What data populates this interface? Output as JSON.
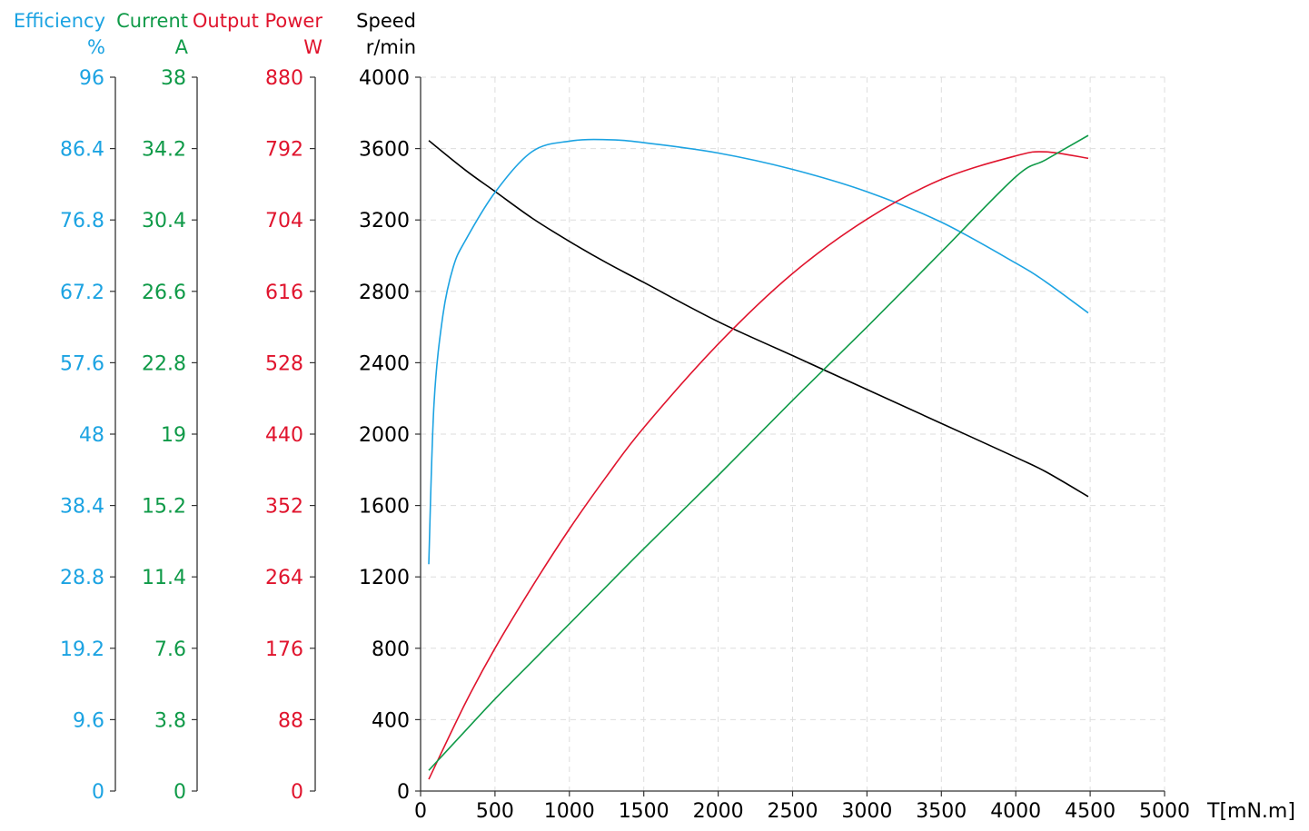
{
  "colors": {
    "efficiency": "#1ca3e2",
    "current": "#0f9a48",
    "output_power": "#e0142d",
    "speed": "#000000",
    "axis": "#333333",
    "grid": "#dddddd"
  },
  "axes": {
    "efficiency": {
      "title": "Efficiency",
      "unit": "%",
      "ticks": [
        "96",
        "86.4",
        "76.8",
        "67.2",
        "57.6",
        "48",
        "38.4",
        "28.8",
        "19.2",
        "9.6",
        "0"
      ]
    },
    "current": {
      "title": "Current",
      "unit": "A",
      "ticks": [
        "38",
        "34.2",
        "30.4",
        "26.6",
        "22.8",
        "19",
        "15.2",
        "11.4",
        "7.6",
        "3.8",
        "0"
      ]
    },
    "output_power": {
      "title": "Output Power",
      "unit": "W",
      "ticks": [
        "880",
        "792",
        "704",
        "616",
        "528",
        "440",
        "352",
        "264",
        "176",
        "88",
        "0"
      ]
    },
    "speed": {
      "title": "Speed",
      "unit": "r/min",
      "ticks": [
        "4000",
        "3600",
        "3200",
        "2800",
        "2400",
        "2000",
        "1600",
        "1200",
        "800",
        "400",
        "0"
      ]
    },
    "torque": {
      "label": "T[mN.m]",
      "ticks": [
        "0",
        "500",
        "1000",
        "1500",
        "2000",
        "2500",
        "3000",
        "3500",
        "4000",
        "4500",
        "5000"
      ]
    }
  },
  "chart_data": {
    "type": "line",
    "title": "",
    "xlabel": "T[mN.m]",
    "xlim": [
      0,
      5000
    ],
    "grid": true,
    "legend_position": "axis titles (top-left, color-coded)",
    "y_axes": [
      {
        "name": "Efficiency",
        "unit": "%",
        "ylim": [
          0,
          96
        ]
      },
      {
        "name": "Current",
        "unit": "A",
        "ylim": [
          0,
          38
        ]
      },
      {
        "name": "Output Power",
        "unit": "W",
        "ylim": [
          0,
          880
        ]
      },
      {
        "name": "Speed",
        "unit": "r/min",
        "ylim": [
          0,
          4000
        ]
      }
    ],
    "x": [
      55,
      300,
      500,
      750,
      1000,
      1250,
      1500,
      2000,
      2500,
      3000,
      3500,
      4000,
      4200,
      4487
    ],
    "series": [
      {
        "name": "Speed",
        "unit": "r/min",
        "color": "#000000",
        "values": [
          3645,
          3480,
          3360,
          3210,
          3080,
          2960,
          2850,
          2630,
          2440,
          2250,
          2060,
          1870,
          1790,
          1650
        ]
      },
      {
        "name": "Efficiency",
        "unit": "%",
        "color": "#1ca3e2",
        "values": [
          30.5,
          74.0,
          80.5,
          86.0,
          87.4,
          87.6,
          87.2,
          85.8,
          83.6,
          80.6,
          76.5,
          71.0,
          68.5,
          64.3
        ]
      },
      {
        "name": "Output Power",
        "unit": "W",
        "color": "#e0142d",
        "values": [
          14.5,
          108,
          176,
          252,
          323,
          388,
          448,
          551,
          638,
          705,
          754,
          783,
          788,
          780
        ]
      },
      {
        "name": "Current",
        "unit": "A",
        "color": "#0f9a48",
        "values": [
          1.1,
          3.2,
          4.9,
          6.9,
          8.9,
          10.9,
          12.9,
          16.8,
          20.8,
          24.7,
          28.7,
          32.7,
          33.6,
          34.9
        ]
      }
    ]
  }
}
